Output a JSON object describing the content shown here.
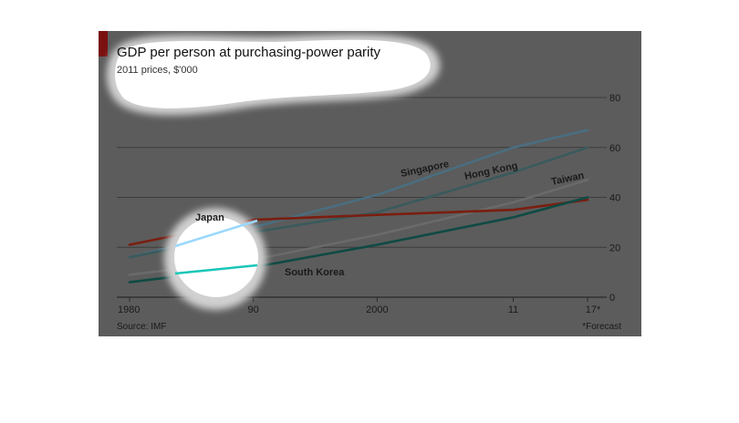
{
  "chart_data": {
    "type": "line",
    "title": "GDP per person at purchasing-power parity",
    "subtitle": "2011 prices, $'000",
    "xlabel": "",
    "ylabel": "",
    "x_ticks": [
      "1980",
      "90",
      "2000",
      "11",
      "17*"
    ],
    "x_tick_values": [
      1980,
      1990,
      2000,
      2011,
      2017
    ],
    "y_ticks": [
      "0",
      "20",
      "40",
      "60",
      "80"
    ],
    "y_tick_values": [
      0,
      20,
      40,
      60,
      80
    ],
    "xlim": [
      1980,
      2017
    ],
    "ylim": [
      0,
      80
    ],
    "grid": true,
    "source": "Source: IMF",
    "footnote": "*Forecast",
    "series": [
      {
        "name": "Singapore",
        "color": "#4a6e80",
        "x": [
          1980,
          1990,
          2000,
          2011,
          2017
        ],
        "values": [
          16,
          28,
          41,
          60,
          67
        ]
      },
      {
        "name": "Hong Kong",
        "color": "#3a5a5c",
        "x": [
          1980,
          1990,
          2000,
          2011,
          2017
        ],
        "values": [
          16,
          26,
          34,
          50,
          60
        ]
      },
      {
        "name": "Taiwan",
        "color": "#6a6a6a",
        "x": [
          1980,
          1990,
          2000,
          2011,
          2017
        ],
        "values": [
          9,
          15,
          25,
          38,
          47
        ]
      },
      {
        "name": "Japan",
        "color": "#7a1e10",
        "x": [
          1980,
          1990,
          2000,
          2011,
          2017
        ],
        "values": [
          21,
          31,
          33,
          35,
          39
        ]
      },
      {
        "name": "South Korea",
        "color": "#0f4a44",
        "x": [
          1980,
          1990,
          2000,
          2011,
          2017
        ],
        "values": [
          6,
          12,
          21,
          32,
          40
        ]
      }
    ]
  }
}
